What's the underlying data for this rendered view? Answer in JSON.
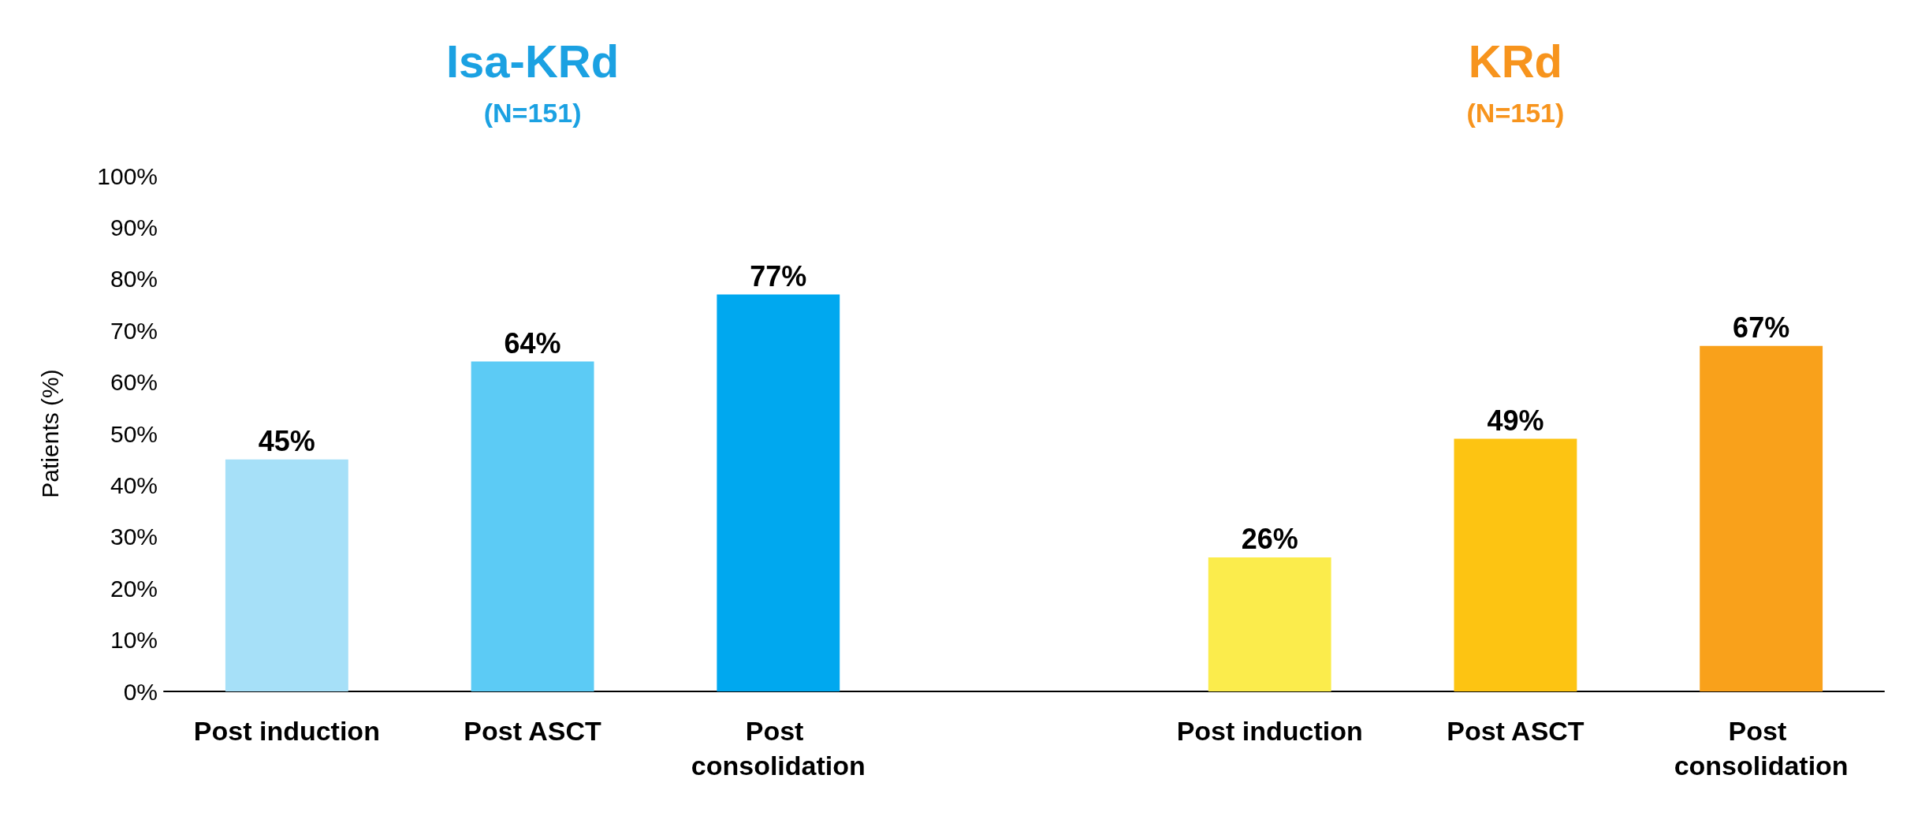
{
  "chart_data": {
    "type": "bar",
    "ylabel": "Patients (%)",
    "categories": [
      "Post induction",
      "Post ASCT",
      "Post consolidation",
      null,
      "Post induction",
      "Post ASCT",
      "Post consolidation"
    ],
    "series": [
      {
        "name": "Isa-KRd",
        "color": "#1ba1e2",
        "values": [
          45,
          64,
          77,
          null,
          null,
          null,
          null
        ],
        "colors": [
          "#a6e0f8",
          "#5ccbf5",
          "#00a8ef",
          null,
          null,
          null,
          null
        ],
        "value_labels": [
          "45%",
          "64%",
          "77%",
          null,
          null,
          null,
          null
        ]
      },
      {
        "name": "KRd",
        "color": "#f7941d",
        "values": [
          null,
          null,
          null,
          null,
          26,
          49,
          67
        ],
        "colors": [
          null,
          null,
          null,
          null,
          "#fbec4c",
          "#fdc412",
          "#f9a11b"
        ],
        "value_labels": [
          null,
          null,
          null,
          null,
          "26%",
          "49%",
          "67%"
        ]
      }
    ],
    "annotations": [
      "(N=151)",
      "(N=151)"
    ],
    "ylim": [
      0,
      100
    ],
    "yticks": [
      {
        "value": 0,
        "label": "0%"
      },
      {
        "value": 10,
        "label": "10%"
      },
      {
        "value": 20,
        "label": "20%"
      },
      {
        "value": 30,
        "label": "30%"
      },
      {
        "value": 40,
        "label": "40%"
      },
      {
        "value": 50,
        "label": "50%"
      },
      {
        "value": 60,
        "label": "60%"
      },
      {
        "value": 70,
        "label": "70%"
      },
      {
        "value": 80,
        "label": "80%"
      },
      {
        "value": 90,
        "label": "90%"
      },
      {
        "value": 100,
        "label": "100%"
      }
    ],
    "grid": false,
    "legend": false
  }
}
